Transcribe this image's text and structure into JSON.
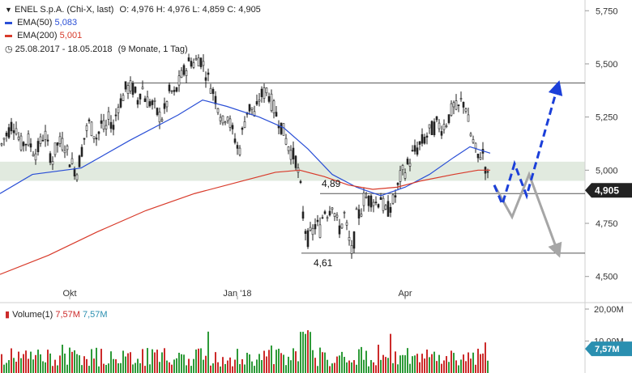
{
  "header": {
    "title": "ENEL S.p.A. (Chi-X, last)",
    "ohlc": "O: 4,976  H: 4,976  L: 4,859  C: 4,905",
    "ema50_label": "EMA(50)",
    "ema50_value": "5,083",
    "ema200_label": "EMA(200)",
    "ema200_value": "5,001",
    "range": "25.08.2017 - 18.05.2018",
    "period": "(9 Monate, 1 Tag)"
  },
  "colors": {
    "up": "#2d9a38",
    "down": "#cc2a2a",
    "ema50": "#2a4fd6",
    "ema200": "#d83a2a",
    "zone": "#d9e5d7",
    "arrow_up": "#1b3fd9",
    "arrow_down": "#a6a6a6"
  },
  "volume": {
    "label": "Volume(1)",
    "value1": "7,57M",
    "value2": "7,57M",
    "ticks": [
      "20,00M",
      "10,00M"
    ],
    "last_badge": "7,57M"
  },
  "annotations": {
    "resistance_low_label": "4,89",
    "support_label": "4,61",
    "last_price": "4,905"
  },
  "chart_data": {
    "type": "candlestick",
    "title": "ENEL S.p.A. (Chi-X, last)",
    "x_range": [
      "2017-08-25",
      "2018-05-18"
    ],
    "x_ticks": [
      "Okt",
      "Jan '18",
      "Apr"
    ],
    "y_ticks": [
      "5,750",
      "5,500",
      "5,250",
      "5,000",
      "4,750",
      "4,500"
    ],
    "ylim": [
      4.4,
      5.77
    ],
    "price_path": [
      [
        0,
        5.1
      ],
      [
        5,
        5.15
      ],
      [
        10,
        5.18
      ],
      [
        15,
        5.22
      ],
      [
        20,
        5.2
      ],
      [
        25,
        5.12
      ],
      [
        30,
        5.13
      ],
      [
        35,
        5.14
      ],
      [
        40,
        5.1
      ],
      [
        45,
        5.08
      ],
      [
        50,
        5.13
      ],
      [
        55,
        5.18
      ],
      [
        60,
        5.09
      ],
      [
        65,
        5.05
      ],
      [
        70,
        5.12
      ],
      [
        75,
        5.13
      ],
      [
        80,
        5.12
      ],
      [
        85,
        5.06
      ],
      [
        90,
        5.02
      ],
      [
        95,
        4.99
      ],
      [
        100,
        5.08
      ],
      [
        105,
        5.17
      ],
      [
        110,
        5.22
      ],
      [
        115,
        5.18
      ],
      [
        120,
        5.15
      ],
      [
        125,
        5.22
      ],
      [
        130,
        5.18
      ],
      [
        135,
        5.25
      ],
      [
        140,
        5.2
      ],
      [
        145,
        5.3
      ],
      [
        150,
        5.33
      ],
      [
        155,
        5.38
      ],
      [
        160,
        5.39
      ],
      [
        165,
        5.38
      ],
      [
        170,
        5.33
      ],
      [
        175,
        5.4
      ],
      [
        180,
        5.33
      ],
      [
        185,
        5.32
      ],
      [
        190,
        5.3
      ],
      [
        195,
        5.26
      ],
      [
        200,
        5.25
      ],
      [
        205,
        5.3
      ],
      [
        210,
        5.38
      ],
      [
        215,
        5.35
      ],
      [
        220,
        5.4
      ],
      [
        225,
        5.45
      ],
      [
        230,
        5.48
      ],
      [
        235,
        5.52
      ],
      [
        240,
        5.5
      ],
      [
        245,
        5.53
      ],
      [
        250,
        5.51
      ],
      [
        255,
        5.45
      ],
      [
        260,
        5.4
      ],
      [
        265,
        5.35
      ],
      [
        270,
        5.3
      ],
      [
        275,
        5.22
      ],
      [
        280,
        5.28
      ],
      [
        285,
        5.2
      ],
      [
        290,
        5.15
      ],
      [
        295,
        5.08
      ],
      [
        300,
        5.2
      ],
      [
        305,
        5.28
      ],
      [
        310,
        5.3
      ],
      [
        315,
        5.25
      ],
      [
        320,
        5.34
      ],
      [
        325,
        5.36
      ],
      [
        330,
        5.38
      ],
      [
        335,
        5.32
      ],
      [
        340,
        5.27
      ],
      [
        345,
        5.23
      ],
      [
        350,
        5.18
      ],
      [
        355,
        5.12
      ],
      [
        360,
        5.08
      ],
      [
        365,
        5.05
      ],
      [
        370,
        4.95
      ],
      [
        375,
        4.75
      ],
      [
        380,
        4.68
      ],
      [
        385,
        4.7
      ],
      [
        390,
        4.75
      ],
      [
        395,
        4.72
      ],
      [
        400,
        4.82
      ],
      [
        405,
        4.8
      ],
      [
        410,
        4.85
      ],
      [
        415,
        4.76
      ],
      [
        420,
        4.72
      ],
      [
        425,
        4.79
      ],
      [
        430,
        4.68
      ],
      [
        435,
        4.6
      ],
      [
        440,
        4.78
      ],
      [
        445,
        4.8
      ],
      [
        450,
        4.88
      ],
      [
        455,
        4.86
      ],
      [
        460,
        4.87
      ],
      [
        465,
        4.84
      ],
      [
        470,
        4.88
      ],
      [
        475,
        4.8
      ],
      [
        480,
        4.82
      ],
      [
        485,
        4.85
      ],
      [
        490,
        4.9
      ],
      [
        495,
        4.98
      ],
      [
        500,
        5.0
      ],
      [
        505,
        5.04
      ],
      [
        510,
        5.08
      ],
      [
        515,
        5.1
      ],
      [
        520,
        5.13
      ],
      [
        525,
        5.15
      ],
      [
        530,
        5.18
      ],
      [
        535,
        5.2
      ],
      [
        540,
        5.22
      ],
      [
        545,
        5.2
      ],
      [
        550,
        5.22
      ],
      [
        555,
        5.26
      ],
      [
        560,
        5.3
      ],
      [
        565,
        5.28
      ],
      [
        570,
        5.33
      ],
      [
        575,
        5.3
      ],
      [
        580,
        5.18
      ],
      [
        585,
        5.12
      ],
      [
        590,
        5.05
      ],
      [
        595,
        5.1
      ],
      [
        600,
        5.0
      ],
      [
        605,
        4.91
      ]
    ],
    "series": [
      {
        "name": "EMA(50)",
        "points": [
          [
            0,
            4.89
          ],
          [
            40,
            4.98
          ],
          [
            100,
            5.01
          ],
          [
            160,
            5.14
          ],
          [
            220,
            5.26
          ],
          [
            250,
            5.33
          ],
          [
            280,
            5.3
          ],
          [
            320,
            5.25
          ],
          [
            350,
            5.2
          ],
          [
            380,
            5.1
          ],
          [
            410,
            4.98
          ],
          [
            440,
            4.92
          ],
          [
            470,
            4.88
          ],
          [
            500,
            4.92
          ],
          [
            530,
            4.98
          ],
          [
            560,
            5.06
          ],
          [
            580,
            5.11
          ],
          [
            605,
            5.08
          ]
        ]
      },
      {
        "name": "EMA(200)",
        "points": [
          [
            0,
            4.51
          ],
          [
            60,
            4.6
          ],
          [
            120,
            4.71
          ],
          [
            180,
            4.81
          ],
          [
            240,
            4.89
          ],
          [
            300,
            4.95
          ],
          [
            340,
            4.99
          ],
          [
            370,
            5.0
          ],
          [
            400,
            4.97
          ],
          [
            430,
            4.93
          ],
          [
            460,
            4.91
          ],
          [
            490,
            4.92
          ],
          [
            520,
            4.95
          ],
          [
            560,
            4.98
          ],
          [
            590,
            5.0
          ],
          [
            605,
            5.0
          ]
        ]
      }
    ],
    "levels": [
      5.41,
      4.89,
      4.61,
      4.905
    ],
    "zone": [
      4.95,
      5.04
    ],
    "arrow_up": [
      [
        610,
        4.93
      ],
      [
        620,
        4.84
      ],
      [
        635,
        5.03
      ],
      [
        650,
        4.88
      ],
      [
        688,
        5.39
      ]
    ],
    "arrow_down": [
      [
        610,
        4.93
      ],
      [
        632,
        4.78
      ],
      [
        653,
        4.98
      ],
      [
        688,
        4.62
      ]
    ]
  }
}
